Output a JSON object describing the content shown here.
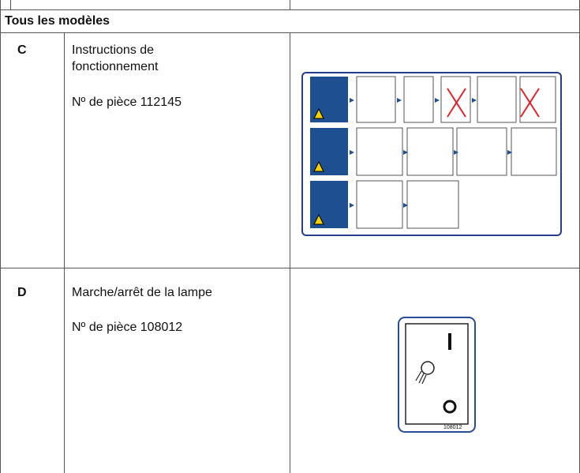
{
  "section_title": "Tous les modèles",
  "rows": [
    {
      "code": "C",
      "title": "Instructions de fonctionnement",
      "part": "Nº de pièce 112145"
    },
    {
      "code": "D",
      "title": "Marche/arrêt de la lampe",
      "part": "Nº de pièce 108012",
      "decal_number": "108012"
    }
  ]
}
